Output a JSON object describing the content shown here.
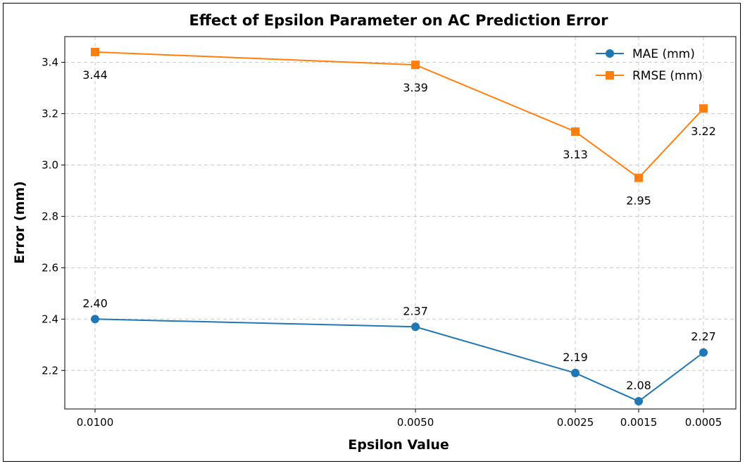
{
  "chart_data": {
    "type": "line",
    "title": "Effect of Epsilon Parameter on AC Prediction Error",
    "xlabel": "Epsilon Value",
    "ylabel": "Error (mm)",
    "categories": [
      "0.0100",
      "0.0050",
      "0.0025",
      "0.0015",
      "0.0005"
    ],
    "x": [
      0.01,
      0.005,
      0.0025,
      0.0015,
      0.0005
    ],
    "x_reversed": true,
    "ylim": [
      2.05,
      3.5
    ],
    "yticks": [
      "2.2",
      "2.4",
      "2.6",
      "2.8",
      "3.0",
      "3.2",
      "3.4"
    ],
    "grid": true,
    "legend_position": "top-right",
    "series": [
      {
        "name": "MAE (mm)",
        "color": "#1f77b4",
        "marker": "circle",
        "values": [
          2.4,
          2.37,
          2.19,
          2.08,
          2.27
        ],
        "labels": [
          "2.40",
          "2.37",
          "2.19",
          "2.08",
          "2.27"
        ]
      },
      {
        "name": "RMSE (mm)",
        "color": "#ff7f0e",
        "marker": "square",
        "values": [
          3.44,
          3.39,
          3.13,
          2.95,
          3.22
        ],
        "labels": [
          "3.44",
          "3.39",
          "3.13",
          "2.95",
          "3.22"
        ]
      }
    ]
  }
}
